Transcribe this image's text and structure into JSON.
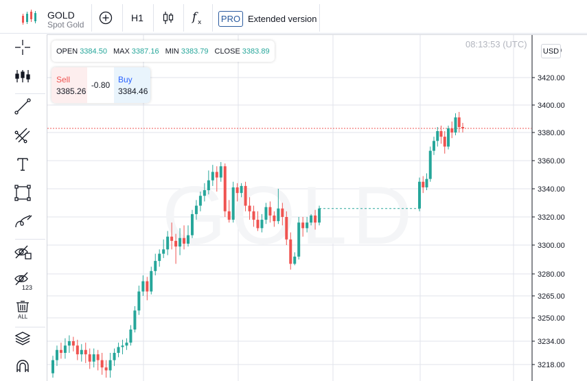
{
  "header": {
    "symbol": "GOLD",
    "description": "Spot Gold",
    "interval": "H1",
    "pro_badge": "PRO",
    "extended_label": "Extended version"
  },
  "left_toolbar": {
    "tools": [
      "crosshair-icon",
      "indicators-icon",
      "trend-line-icon",
      "fib-tools-icon",
      "text-tool-icon",
      "rectangle-icon",
      "brush-icon",
      "hide-drawings-icon",
      "hide-indicators-icon",
      "remove-all-icon",
      "layers-icon",
      "magnet-icon"
    ],
    "remove_all_label": "ALL",
    "hide_indicators_label": "123"
  },
  "chart": {
    "timestamp": "08:13:53 (UTC)",
    "currency": "USD",
    "watermark": "GOLD",
    "ohlc": {
      "open_label": "OPEN",
      "open": "3384.50",
      "high_label": "MAX",
      "high": "3387.16",
      "low_label": "MIN",
      "low": "3383.79",
      "close_label": "CLOSE",
      "close": "3383.89"
    },
    "trade": {
      "sell_label": "Sell",
      "sell_price": "3385.26",
      "spread": "-0.80",
      "buy_label": "Buy",
      "buy_price": "3384.46"
    },
    "colors": {
      "up": "#26a69a",
      "down": "#ef5350",
      "price_line": "#ef5350",
      "gap_line": "#26a69a",
      "grid": "#e0e3eb"
    }
  },
  "chart_data": {
    "type": "candlestick",
    "y_ticks": [
      3218.0,
      3234.0,
      3250.0,
      3265.0,
      3280.0,
      3300.0,
      3320.0,
      3340.0,
      3360.0,
      3380.0,
      3400.0,
      3420.0
    ],
    "y_tick_labels": [
      "3218.00",
      "3234.00",
      "3250.00",
      "3265.00",
      "3280.00",
      "3300.00",
      "3320.00",
      "3340.00",
      "3360.00",
      "3380.00",
      "3400.00",
      "3420.00"
    ],
    "current_price": 3383.0,
    "gap_level": 3326.0,
    "candles_1": [
      [
        3212,
        3221,
        3209,
        3224
      ],
      [
        3221,
        3228,
        3217,
        3231
      ],
      [
        3228,
        3226,
        3222,
        3233
      ],
      [
        3226,
        3231,
        3222,
        3236
      ],
      [
        3231,
        3234,
        3226,
        3238
      ],
      [
        3234,
        3231,
        3227,
        3237
      ],
      [
        3231,
        3225,
        3221,
        3235
      ],
      [
        3225,
        3228,
        3220,
        3232
      ],
      [
        3228,
        3225,
        3219,
        3233
      ],
      [
        3225,
        3220,
        3215,
        3229
      ],
      [
        3220,
        3225,
        3216,
        3229
      ],
      [
        3225,
        3221,
        3214,
        3228
      ],
      [
        3221,
        3216,
        3211,
        3226
      ],
      [
        3216,
        3214,
        3209,
        3221
      ],
      [
        3214,
        3221,
        3209,
        3226
      ],
      [
        3221,
        3226,
        3217,
        3229
      ],
      [
        3226,
        3230,
        3223,
        3233
      ],
      [
        3230,
        3231,
        3225,
        3235
      ],
      [
        3231,
        3233,
        3228,
        3236
      ],
      [
        3233,
        3242,
        3231,
        3245
      ],
      [
        3242,
        3255,
        3240,
        3258
      ],
      [
        3255,
        3268,
        3252,
        3272
      ],
      [
        3268,
        3275,
        3265,
        3279
      ],
      [
        3275,
        3268,
        3262,
        3278
      ],
      [
        3268,
        3282,
        3266,
        3285
      ],
      [
        3282,
        3289,
        3279,
        3294
      ],
      [
        3289,
        3294,
        3285,
        3297
      ],
      [
        3294,
        3297,
        3291,
        3304
      ],
      [
        3297,
        3306,
        3293,
        3310
      ],
      [
        3306,
        3303,
        3297,
        3316
      ],
      [
        3303,
        3299,
        3287,
        3308
      ],
      [
        3299,
        3305,
        3293,
        3312
      ],
      [
        3305,
        3301,
        3297,
        3314
      ],
      [
        3301,
        3307,
        3299,
        3314
      ],
      [
        3307,
        3322,
        3305,
        3325
      ],
      [
        3322,
        3328,
        3318,
        3332
      ],
      [
        3328,
        3335,
        3324,
        3338
      ],
      [
        3335,
        3339,
        3331,
        3344
      ],
      [
        3339,
        3346,
        3336,
        3353
      ],
      [
        3346,
        3352,
        3342,
        3357
      ],
      [
        3352,
        3348,
        3338,
        3356
      ],
      [
        3348,
        3356,
        3345,
        3359
      ],
      [
        3356,
        3324,
        3320,
        3358
      ],
      [
        3324,
        3318,
        3316,
        3332
      ],
      [
        3318,
        3341,
        3316,
        3345
      ],
      [
        3341,
        3337,
        3331,
        3344
      ],
      [
        3337,
        3342,
        3334,
        3344
      ],
      [
        3342,
        3328,
        3324,
        3345
      ],
      [
        3328,
        3324,
        3318,
        3334
      ],
      [
        3324,
        3318,
        3313,
        3328
      ],
      [
        3318,
        3312,
        3310,
        3324
      ],
      [
        3312,
        3318,
        3309,
        3322
      ],
      [
        3318,
        3327,
        3315,
        3330
      ],
      [
        3327,
        3321,
        3316,
        3331
      ],
      [
        3321,
        3317,
        3313,
        3324
      ],
      [
        3317,
        3326,
        3315,
        3340
      ],
      [
        3326,
        3320,
        3314,
        3330
      ],
      [
        3320,
        3304,
        3300,
        3324
      ],
      [
        3304,
        3287,
        3283,
        3309
      ],
      [
        3287,
        3292,
        3286,
        3295
      ],
      [
        3292,
        3316,
        3290,
        3320
      ],
      [
        3316,
        3312,
        3306,
        3320
      ],
      [
        3312,
        3316,
        3309,
        3320
      ],
      [
        3316,
        3321,
        3314,
        3322
      ],
      [
        3321,
        3316,
        3311,
        3325
      ],
      [
        3316,
        3326,
        3314,
        3328
      ]
    ],
    "candles_2": [
      [
        3326,
        3345,
        3324,
        3348
      ],
      [
        3345,
        3341,
        3337,
        3349
      ],
      [
        3341,
        3347,
        3339,
        3351
      ],
      [
        3347,
        3367,
        3345,
        3370
      ],
      [
        3367,
        3374,
        3364,
        3377
      ],
      [
        3374,
        3381,
        3370,
        3384
      ],
      [
        3381,
        3377,
        3372,
        3385
      ],
      [
        3377,
        3370,
        3365,
        3381
      ],
      [
        3370,
        3383,
        3368,
        3385
      ],
      [
        3383,
        3380,
        3376,
        3388
      ],
      [
        3380,
        3391,
        3378,
        3394
      ],
      [
        3391,
        3384,
        3380,
        3395
      ],
      [
        3384,
        3383,
        3380,
        3387
      ]
    ]
  }
}
